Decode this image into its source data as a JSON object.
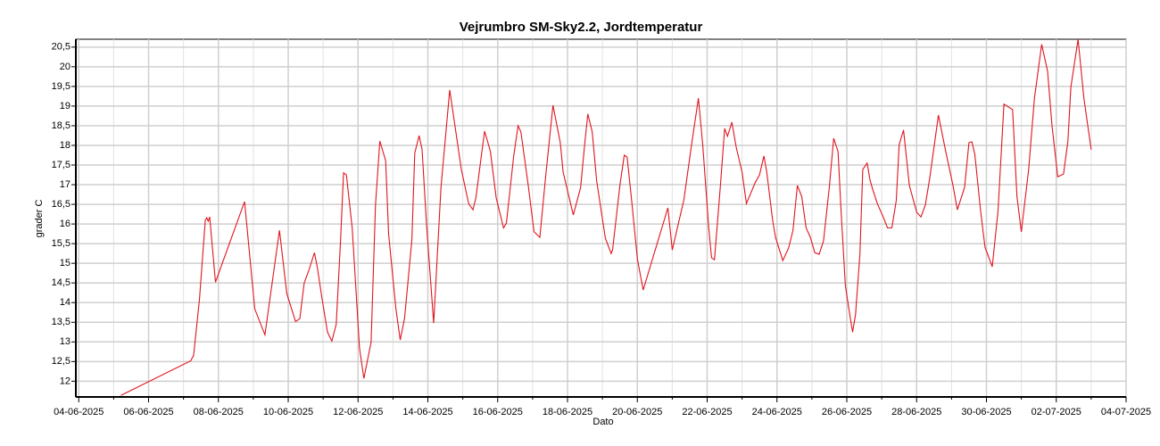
{
  "chart_data": {
    "type": "line",
    "title": "Vejrumbro SM-Sky2.2, Jordtemperatur",
    "xlabel": "Dato",
    "ylabel": "grader C",
    "color": "#e0141e",
    "grid": true,
    "xlim": [
      "2025-06-03T22:00",
      "2025-07-04T00:00"
    ],
    "xticks": [
      {
        "value": "2025-06-04T00:00",
        "label": "04-06-2025"
      },
      {
        "value": "2025-06-06T00:00",
        "label": "06-06-2025"
      },
      {
        "value": "2025-06-08T00:00",
        "label": "08-06-2025"
      },
      {
        "value": "2025-06-10T00:00",
        "label": "10-06-2025"
      },
      {
        "value": "2025-06-12T00:00",
        "label": "12-06-2025"
      },
      {
        "value": "2025-06-14T00:00",
        "label": "14-06-2025"
      },
      {
        "value": "2025-06-16T00:00",
        "label": "16-06-2025"
      },
      {
        "value": "2025-06-18T00:00",
        "label": "18-06-2025"
      },
      {
        "value": "2025-06-20T00:00",
        "label": "20-06-2025"
      },
      {
        "value": "2025-06-22T00:00",
        "label": "22-06-2025"
      },
      {
        "value": "2025-06-24T00:00",
        "label": "24-06-2025"
      },
      {
        "value": "2025-06-26T00:00",
        "label": "26-06-2025"
      },
      {
        "value": "2025-06-28T00:00",
        "label": "28-06-2025"
      },
      {
        "value": "2025-06-30T00:00",
        "label": "30-06-2025"
      },
      {
        "value": "2025-07-02T00:00",
        "label": "02-07-2025"
      },
      {
        "value": "2025-07-04T00:00",
        "label": "04-07-2025"
      }
    ],
    "ylim": [
      11.6,
      20.7
    ],
    "yticks": [
      12,
      {
        "value": 12.5,
        "label": "12,5"
      },
      13,
      {
        "value": 13.5,
        "label": "13,5"
      },
      14,
      {
        "value": 14.5,
        "label": "14,5"
      },
      15,
      {
        "value": 15.5,
        "label": "15,5"
      },
      16,
      {
        "value": 16.5,
        "label": "16,5"
      },
      17,
      {
        "value": 17.5,
        "label": "17,5"
      },
      18,
      {
        "value": 18.5,
        "label": "18,5"
      },
      19,
      {
        "value": 19.5,
        "label": "19,5"
      },
      20,
      {
        "value": 20.5,
        "label": "20,5"
      }
    ],
    "x": [
      "2025-06-05T05:00",
      "2025-06-07T05:00",
      "2025-06-07T07:00",
      "2025-06-07T11:00",
      "2025-06-07T15:00",
      "2025-06-07T16:00",
      "2025-06-07T17:00",
      "2025-06-07T18:00",
      "2025-06-07T22:00",
      "2025-06-08T18:00",
      "2025-06-09T01:00",
      "2025-06-09T08:00",
      "2025-06-09T18:00",
      "2025-06-09T23:00",
      "2025-06-10T05:00",
      "2025-06-10T08:00",
      "2025-06-10T11:00",
      "2025-06-10T14:00",
      "2025-06-10T18:00",
      "2025-06-10T20:00",
      "2025-06-10T23:00",
      "2025-06-11T03:00",
      "2025-06-11T06:00",
      "2025-06-11T09:00",
      "2025-06-11T12:00",
      "2025-06-11T14:00",
      "2025-06-11T16:00",
      "2025-06-11T20:00",
      "2025-06-12T01:00",
      "2025-06-12T04:00",
      "2025-06-12T09:00",
      "2025-06-12T12:00",
      "2025-06-12T15:00",
      "2025-06-12T19:00",
      "2025-06-12T21:00",
      "2025-06-13T02:00",
      "2025-06-13T05:00",
      "2025-06-13T08:00",
      "2025-06-13T13:00",
      "2025-06-13T15:00",
      "2025-06-13T18:00",
      "2025-06-13T20:00",
      "2025-06-13T23:00",
      "2025-06-14T04:00",
      "2025-06-14T09:00",
      "2025-06-14T15:00",
      "2025-06-14T23:00",
      "2025-06-15T04:00",
      "2025-06-15T07:00",
      "2025-06-15T09:00",
      "2025-06-15T13:00",
      "2025-06-15T15:00",
      "2025-06-15T17:00",
      "2025-06-15T19:00",
      "2025-06-15T23:00",
      "2025-06-16T04:00",
      "2025-06-16T06:00",
      "2025-06-16T11:00",
      "2025-06-16T14:00",
      "2025-06-16T16:00",
      "2025-06-16T21:00",
      "2025-06-17T01:00",
      "2025-06-17T05:00",
      "2025-06-17T09:00",
      "2025-06-17T14:00",
      "2025-06-17T19:00",
      "2025-06-17T21:00",
      "2025-06-18T04:00",
      "2025-06-18T09:00",
      "2025-06-18T12:00",
      "2025-06-18T14:00",
      "2025-06-18T17:00",
      "2025-06-18T20:00",
      "2025-06-19T02:00",
      "2025-06-19T06:00",
      "2025-06-19T07:00",
      "2025-06-19T12:00",
      "2025-06-19T15:00",
      "2025-06-19T17:00",
      "2025-06-19T20:00",
      "2025-06-20T00:00",
      "2025-06-20T04:00",
      "2025-06-20T21:00",
      "2025-06-21T00:00",
      "2025-06-21T08:00",
      "2025-06-21T13:00",
      "2025-06-21T18:00",
      "2025-06-21T21:00",
      "2025-06-22T01:00",
      "2025-06-22T03:00",
      "2025-06-22T05:00",
      "2025-06-22T09:00",
      "2025-06-22T12:00",
      "2025-06-22T14:00",
      "2025-06-22T17:00",
      "2025-06-22T20:00",
      "2025-06-23T00:00",
      "2025-06-23T03:00",
      "2025-06-23T09:00",
      "2025-06-23T12:00",
      "2025-06-23T15:00",
      "2025-06-23T17:00",
      "2025-06-23T21:00",
      "2025-06-23T23:00",
      "2025-06-24T04:00",
      "2025-06-24T08:00",
      "2025-06-24T11:00",
      "2025-06-24T14:00",
      "2025-06-24T17:00",
      "2025-06-24T20:00",
      "2025-06-24T23:00",
      "2025-06-25T02:00",
      "2025-06-25T05:00",
      "2025-06-25T08:00",
      "2025-06-25T12:00",
      "2025-06-25T15:00",
      "2025-06-25T18:00",
      "2025-06-25T20:00",
      "2025-06-25T23:00",
      "2025-06-26T02:00",
      "2025-06-26T04:00",
      "2025-06-26T06:00",
      "2025-06-26T09:00",
      "2025-06-26T11:00",
      "2025-06-26T14:00",
      "2025-06-26T16:00",
      "2025-06-26T18:00",
      "2025-06-26T21:00",
      "2025-06-27T01:00",
      "2025-06-27T04:00",
      "2025-06-27T07:00",
      "2025-06-27T10:00",
      "2025-06-27T12:00",
      "2025-06-27T15:00",
      "2025-06-27T19:00",
      "2025-06-28T00:00",
      "2025-06-28T03:00",
      "2025-06-28T06:00",
      "2025-06-28T09:00",
      "2025-06-28T15:00",
      "2025-06-28T20:00",
      "2025-06-29T01:00",
      "2025-06-29T04:00",
      "2025-06-29T09:00",
      "2025-06-29T12:00",
      "2025-06-29T14:00",
      "2025-06-29T16:00",
      "2025-06-29T20:00",
      "2025-06-29T23:00",
      "2025-06-30T04:00",
      "2025-06-30T08:00",
      "2025-06-30T12:00",
      "2025-06-30T18:00",
      "2025-06-30T21:00",
      "2025-07-01T00:00",
      "2025-07-01T05:00",
      "2025-07-01T09:00",
      "2025-07-01T14:00",
      "2025-07-01T18:00",
      "2025-07-01T21:00",
      "2025-07-02T01:00",
      "2025-07-02T05:00",
      "2025-07-02T08:00",
      "2025-07-02T10:00",
      "2025-07-02T15:00",
      "2025-07-02T19:00",
      "2025-07-03T00:00"
    ],
    "values": [
      11.64,
      12.52,
      12.66,
      14.1,
      16.1,
      16.16,
      16.07,
      16.18,
      14.52,
      16.57,
      13.84,
      13.18,
      15.84,
      14.23,
      13.52,
      13.59,
      14.5,
      14.8,
      15.27,
      14.9,
      14.16,
      13.25,
      13.02,
      13.45,
      15.6,
      17.3,
      17.25,
      15.9,
      12.84,
      12.07,
      13.0,
      16.48,
      18.11,
      17.61,
      15.75,
      13.86,
      13.05,
      13.6,
      15.6,
      17.8,
      18.25,
      17.9,
      16.02,
      13.48,
      16.93,
      19.41,
      17.39,
      16.52,
      16.36,
      16.66,
      17.8,
      18.36,
      18.11,
      17.84,
      16.66,
      15.9,
      16.02,
      17.73,
      18.5,
      18.34,
      16.98,
      15.8,
      15.66,
      17.23,
      19.02,
      18.07,
      17.32,
      16.23,
      16.93,
      18.11,
      18.8,
      18.34,
      17.11,
      15.64,
      15.25,
      15.34,
      16.98,
      17.75,
      17.7,
      16.64,
      15.11,
      14.32,
      16.41,
      15.34,
      16.61,
      17.95,
      19.2,
      18.0,
      15.95,
      15.14,
      15.09,
      16.93,
      18.43,
      18.23,
      18.59,
      17.95,
      17.32,
      16.52,
      17.05,
      17.25,
      17.73,
      17.32,
      16.09,
      15.66,
      15.07,
      15.39,
      15.84,
      16.98,
      16.7,
      15.9,
      15.66,
      15.27,
      15.23,
      15.57,
      16.93,
      18.18,
      17.84,
      16.36,
      14.43,
      13.7,
      13.25,
      13.7,
      15.23,
      17.39,
      17.55,
      17.11,
      16.86,
      16.52,
      16.18,
      15.9,
      15.9,
      16.59,
      18.02,
      18.39,
      16.98,
      16.3,
      16.18,
      16.48,
      17.16,
      18.77,
      17.84,
      16.98,
      16.36,
      16.93,
      18.07,
      18.09,
      17.77,
      16.32,
      15.41,
      14.91,
      16.34,
      19.05,
      18.91,
      16.7,
      15.8,
      17.39,
      19.2,
      20.57,
      19.89,
      18.52,
      17.2,
      17.27,
      18.11,
      19.48,
      20.7,
      19.2,
      17.89
    ]
  }
}
